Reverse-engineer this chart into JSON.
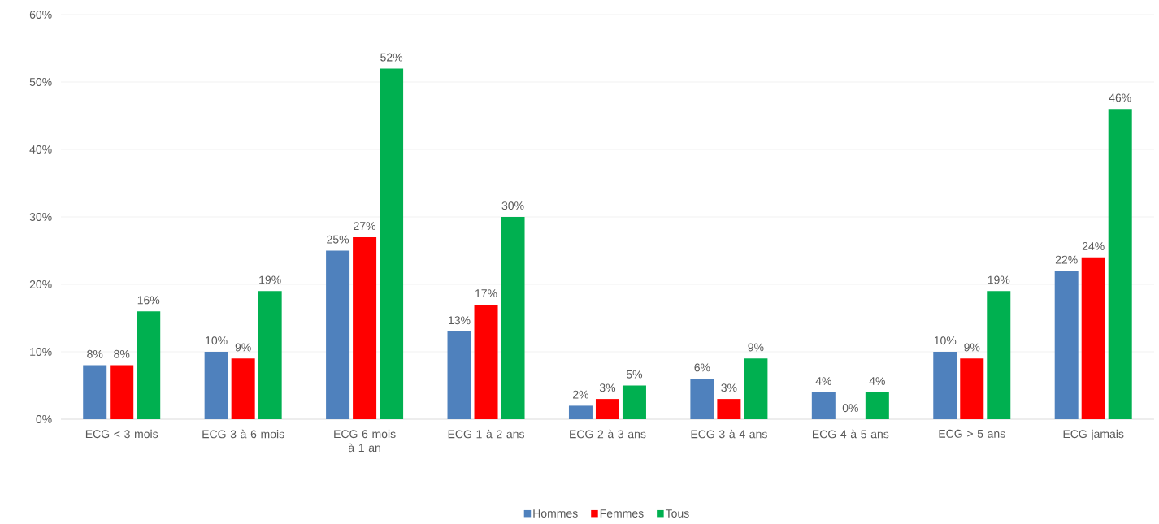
{
  "chart_data": {
    "type": "bar",
    "categories": [
      "ECG < 3 mois",
      "ECG 3 à 6 mois",
      "ECG 6 mois à 1 an",
      "ECG 1 à 2 ans",
      "ECG 2 à 3 ans",
      "ECG 3 à 4 ans",
      "ECG 4 à 5 ans",
      "ECG > 5 ans",
      "ECG jamais"
    ],
    "series": [
      {
        "name": "Hommes",
        "color": "#4f81bd",
        "values": [
          8,
          10,
          25,
          13,
          2,
          6,
          4,
          10,
          22
        ],
        "value_labels": [
          "8%",
          "10%",
          "25%",
          "13%",
          "2%",
          "6%",
          "4%",
          "10%",
          "22%"
        ]
      },
      {
        "name": "Femmes",
        "color": "#ff0000",
        "values": [
          8,
          9,
          27,
          17,
          3,
          3,
          0,
          9,
          24
        ],
        "value_labels": [
          "8%",
          "9%",
          "27%",
          "17%",
          "3%",
          "3%",
          "0%",
          "9%",
          "24%"
        ]
      },
      {
        "name": "Tous",
        "color": "#00b050",
        "values": [
          16,
          19,
          52,
          30,
          5,
          9,
          4,
          19,
          46
        ],
        "value_labels": [
          "16%",
          "19%",
          "52%",
          "30%",
          "5%",
          "9%",
          "4%",
          "19%",
          "46%"
        ]
      }
    ],
    "ylim": [
      0,
      60
    ],
    "yticks": [
      {
        "value": 0,
        "label": "0%"
      },
      {
        "value": 10,
        "label": "10%"
      },
      {
        "value": 20,
        "label": "20%"
      },
      {
        "value": 30,
        "label": "30%"
      },
      {
        "value": 40,
        "label": "40%"
      },
      {
        "value": 50,
        "label": "50%"
      },
      {
        "value": 60,
        "label": "60%"
      }
    ],
    "grid": "y",
    "legend": "bottom"
  }
}
